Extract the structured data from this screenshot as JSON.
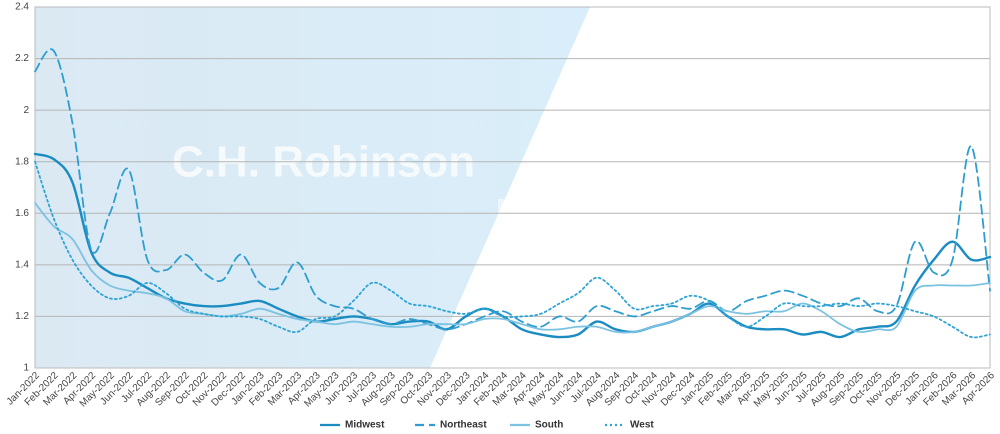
{
  "chart_data": {
    "type": "line",
    "watermark": [
      "C.H. Robinson",
      "Edge"
    ],
    "categories": [
      "Jan-2022",
      "Feb-2022",
      "Mar-2022",
      "Apr-2022",
      "May-2022",
      "Jun-2022",
      "Jul-2022",
      "Aug-2022",
      "Sep-2022",
      "Oct-2022",
      "Nov-2022",
      "Dec-2022",
      "Jan-2023",
      "Feb-2023",
      "Mar-2023",
      "Apr-2023",
      "May-2023",
      "Jun-2023",
      "Jul-2023",
      "Aug-2023",
      "Sep-2023",
      "Oct-2023",
      "Nov-2023",
      "Dec-2023",
      "Jan-2024",
      "Feb-2024",
      "Mar-2024",
      "Apr-2024",
      "May-2024",
      "Jun-2024",
      "Jul-2024",
      "Aug-2024",
      "Sep-2024",
      "Oct-2024",
      "Nov-2024",
      "Dec-2024",
      "Jan-2025",
      "Feb-2025",
      "Mar-2025",
      "Apr-2025",
      "May-2025",
      "Jun-2025",
      "Jul-2025",
      "Aug-2025",
      "Sep-2025",
      "Oct-2025",
      "Nov-2025",
      "Dec-2025",
      "Jan-2026",
      "Feb-2026",
      "Mar-2026",
      "Apr-2026"
    ],
    "series": [
      {
        "name": "Midwest",
        "color": "#1b8cc2",
        "dash": "solid",
        "values": [
          1.83,
          1.81,
          1.72,
          1.45,
          1.37,
          1.35,
          1.31,
          1.27,
          1.25,
          1.24,
          1.24,
          1.25,
          1.26,
          1.23,
          1.2,
          1.18,
          1.19,
          1.2,
          1.19,
          1.17,
          1.18,
          1.18,
          1.15,
          1.2,
          1.23,
          1.2,
          1.15,
          1.13,
          1.12,
          1.13,
          1.18,
          1.15,
          1.14,
          1.16,
          1.18,
          1.21,
          1.25,
          1.2,
          1.16,
          1.15,
          1.15,
          1.13,
          1.14,
          1.12,
          1.15,
          1.16,
          1.18,
          1.32,
          1.42,
          1.49,
          1.42,
          1.43
        ]
      },
      {
        "name": "Northeast",
        "color": "#2e9dd0",
        "dash": "dashed",
        "values": [
          2.15,
          2.23,
          1.95,
          1.46,
          1.6,
          1.77,
          1.42,
          1.38,
          1.44,
          1.37,
          1.34,
          1.44,
          1.33,
          1.31,
          1.41,
          1.28,
          1.24,
          1.23,
          1.19,
          1.17,
          1.19,
          1.17,
          1.15,
          1.17,
          1.2,
          1.22,
          1.18,
          1.16,
          1.2,
          1.18,
          1.24,
          1.22,
          1.2,
          1.22,
          1.24,
          1.23,
          1.26,
          1.22,
          1.26,
          1.28,
          1.3,
          1.28,
          1.25,
          1.24,
          1.27,
          1.22,
          1.24,
          1.49,
          1.37,
          1.42,
          1.86,
          1.3
        ]
      },
      {
        "name": "South",
        "color": "#7cc2e2",
        "dash": "solid",
        "values": [
          1.64,
          1.55,
          1.5,
          1.38,
          1.32,
          1.3,
          1.29,
          1.27,
          1.22,
          1.21,
          1.2,
          1.21,
          1.23,
          1.21,
          1.19,
          1.18,
          1.17,
          1.18,
          1.17,
          1.16,
          1.16,
          1.17,
          1.17,
          1.17,
          1.19,
          1.19,
          1.17,
          1.15,
          1.15,
          1.16,
          1.16,
          1.14,
          1.14,
          1.16,
          1.18,
          1.21,
          1.24,
          1.22,
          1.21,
          1.22,
          1.22,
          1.25,
          1.22,
          1.17,
          1.14,
          1.15,
          1.16,
          1.3,
          1.32,
          1.32,
          1.32,
          1.33
        ]
      },
      {
        "name": "West",
        "color": "#2ea3d6",
        "dash": "dotted",
        "values": [
          1.8,
          1.58,
          1.42,
          1.32,
          1.27,
          1.28,
          1.33,
          1.29,
          1.23,
          1.21,
          1.2,
          1.2,
          1.19,
          1.16,
          1.14,
          1.19,
          1.2,
          1.26,
          1.33,
          1.3,
          1.25,
          1.24,
          1.22,
          1.21,
          1.23,
          1.2,
          1.2,
          1.21,
          1.25,
          1.29,
          1.35,
          1.3,
          1.23,
          1.24,
          1.25,
          1.28,
          1.26,
          1.2,
          1.16,
          1.2,
          1.25,
          1.24,
          1.24,
          1.25,
          1.24,
          1.25,
          1.24,
          1.22,
          1.2,
          1.16,
          1.12,
          1.13
        ]
      }
    ],
    "ylim": [
      1,
      2.4
    ],
    "yticks": [
      1,
      1.2,
      1.4,
      1.6,
      1.8,
      2,
      2.2,
      2.4
    ],
    "grid": true,
    "legend": "bottom"
  }
}
